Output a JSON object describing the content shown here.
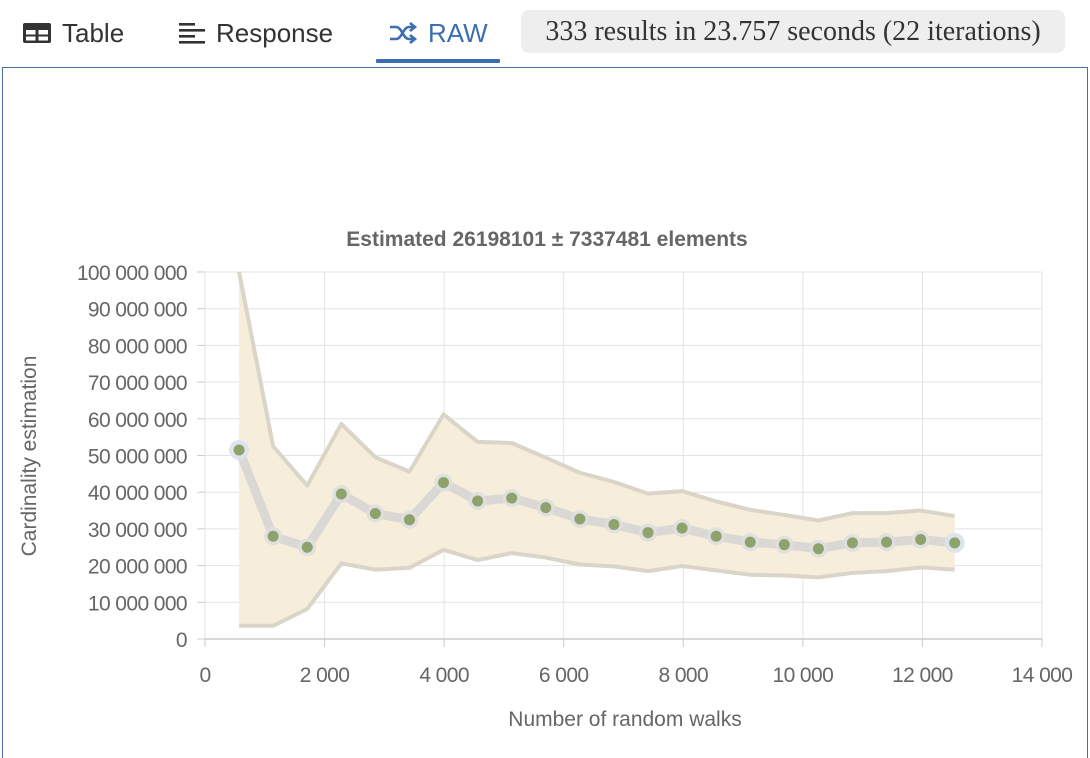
{
  "tabs": {
    "items": [
      {
        "label": "Table",
        "icon": "table-icon"
      },
      {
        "label": "Response",
        "icon": "list-lines-icon"
      },
      {
        "label": "RAW",
        "icon": "shuffle-icon"
      }
    ],
    "active": "RAW",
    "accent_color": "#3d6fb0"
  },
  "status": {
    "text": "333 results in 23.757 seconds (22 iterations)"
  },
  "chart_data": {
    "type": "line",
    "title": "Estimated 26198101 ± 7337481 elements",
    "xlabel": "Number of random walks",
    "ylabel": "Cardinality estimation",
    "xlim": [
      0,
      14000
    ],
    "ylim": [
      0,
      100000000
    ],
    "x_ticks": [
      0,
      2000,
      4000,
      6000,
      8000,
      10000,
      12000,
      14000
    ],
    "x_tick_labels": [
      "0",
      "2 000",
      "4 000",
      "6 000",
      "8 000",
      "10 000",
      "12 000",
      "14 000"
    ],
    "y_ticks": [
      0,
      10000000,
      20000000,
      30000000,
      40000000,
      50000000,
      60000000,
      70000000,
      80000000,
      90000000,
      100000000
    ],
    "y_tick_labels": [
      "0",
      "10 000 000",
      "20 000 000",
      "30 000 000",
      "40 000 000",
      "50 000 000",
      "60 000 000",
      "70 000 000",
      "80 000 000",
      "90 000 000",
      "100 000 000"
    ],
    "grid": true,
    "colors": {
      "point": "#8ea36b",
      "line": "#d4d4d4",
      "band_fill": "#f6eedb",
      "band_edge": "#dad5c8"
    },
    "series": [
      {
        "x": [
          570,
          1140,
          1710,
          2280,
          2850,
          3420,
          3990,
          4560,
          5130,
          5700,
          6270,
          6840,
          7410,
          7980,
          8550,
          9120,
          9690,
          10260,
          10830,
          11400,
          11970,
          12540
        ],
        "values": [
          51500000,
          28000000,
          25000000,
          39500000,
          34200000,
          32500000,
          42600000,
          37600000,
          38400000,
          35800000,
          32700000,
          31200000,
          29000000,
          30200000,
          28000000,
          26400000,
          25700000,
          24600000,
          26200000,
          26400000,
          27100000,
          26200000
        ],
        "upper": [
          100000000,
          52500000,
          41800000,
          58600000,
          49500000,
          45600000,
          61200000,
          53700000,
          53400000,
          49400000,
          45300000,
          42800000,
          39600000,
          40300000,
          37500000,
          35200000,
          33800000,
          32300000,
          34300000,
          34300000,
          35000000,
          33500000
        ],
        "lower": [
          3600000,
          3600000,
          8200000,
          20600000,
          18900000,
          19400000,
          24300000,
          21500000,
          23400000,
          22200000,
          20300000,
          19800000,
          18500000,
          19900000,
          18700000,
          17500000,
          17300000,
          16800000,
          18000000,
          18500000,
          19500000,
          18900000
        ]
      }
    ]
  }
}
